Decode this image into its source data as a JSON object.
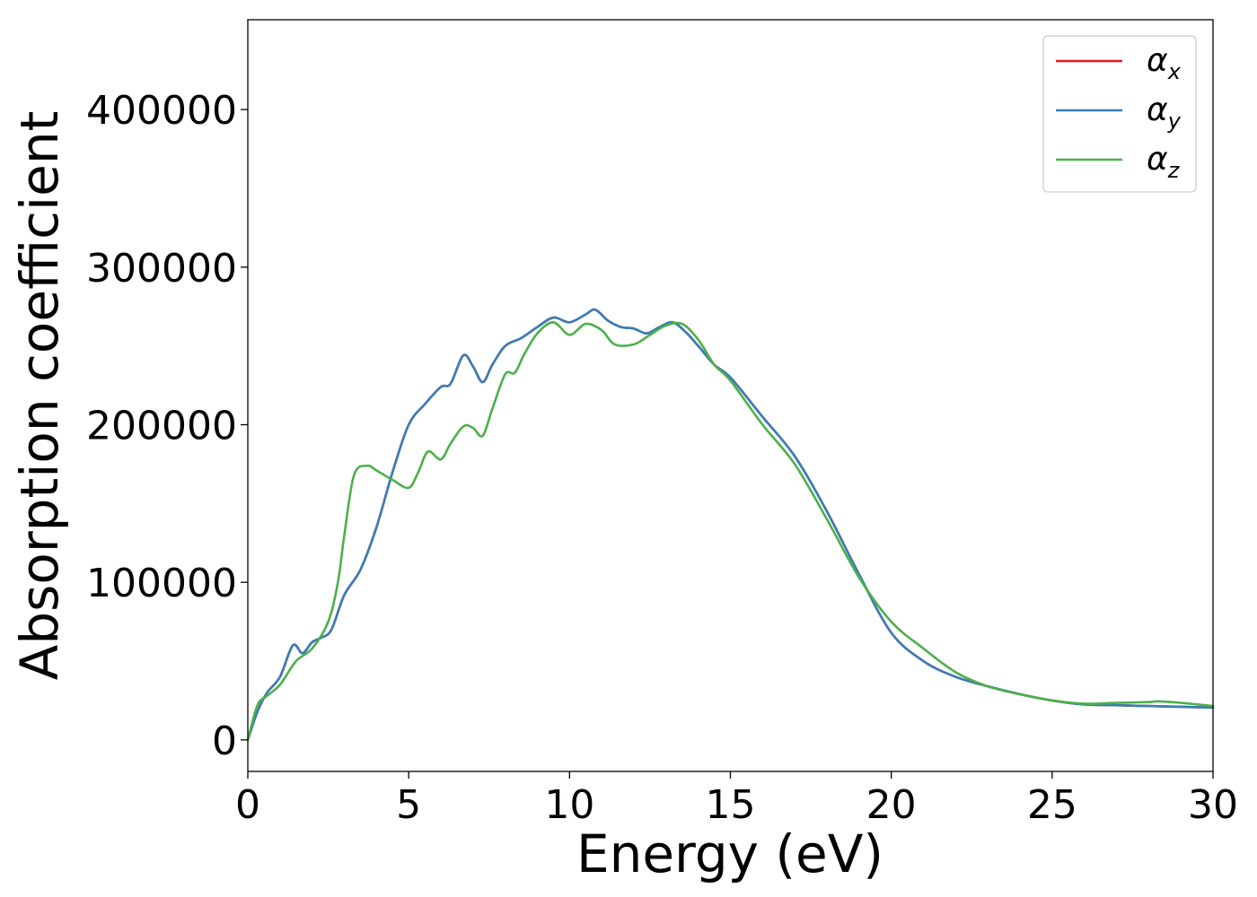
{
  "chart_data": {
    "type": "line",
    "title": "",
    "xlabel": "Energy (eV)",
    "ylabel": "Absorption coefficient",
    "xlim": [
      0,
      30
    ],
    "ylim": [
      -20000,
      457000
    ],
    "xticks": [
      0,
      5,
      10,
      15,
      20,
      25,
      30
    ],
    "xtick_labels": [
      "0",
      "5",
      "10",
      "15",
      "20",
      "25",
      "30"
    ],
    "yticks": [
      0,
      100000,
      200000,
      300000,
      400000
    ],
    "ytick_labels": [
      "0",
      "100000",
      "200000",
      "300000",
      "400000"
    ],
    "grid": false,
    "legend_position": "top-right",
    "legend": [
      {
        "symbol": "α",
        "sub": "x"
      },
      {
        "symbol": "α",
        "sub": "y"
      },
      {
        "symbol": "α",
        "sub": "z"
      }
    ],
    "series": [
      {
        "name": "αx",
        "color": "#e41a1c",
        "x": [
          0,
          0.3,
          0.6,
          1.0,
          1.4,
          1.7,
          2.0,
          2.3,
          2.6,
          3.0,
          3.5,
          4.0,
          4.5,
          5.0,
          5.5,
          6.0,
          6.3,
          6.7,
          7.0,
          7.3,
          7.6,
          8.0,
          8.5,
          9.0,
          9.5,
          10.0,
          10.5,
          10.8,
          11.2,
          11.6,
          12.0,
          12.4,
          12.8,
          13.2,
          13.6,
          14.0,
          14.5,
          15.0,
          16.0,
          17.0,
          18.0,
          19.0,
          20.0,
          21.0,
          22.0,
          23.0,
          24.0,
          25.0,
          26.0,
          27.0,
          28.0,
          29.0,
          30.0
        ],
        "y": [
          0,
          18000,
          30000,
          40000,
          60000,
          55000,
          62000,
          65000,
          70000,
          92000,
          108000,
          135000,
          170000,
          200000,
          213000,
          224000,
          226000,
          244000,
          237000,
          227000,
          238000,
          250000,
          255000,
          262000,
          268000,
          265000,
          270000,
          273000,
          266000,
          262000,
          261000,
          258000,
          262000,
          265000,
          259000,
          250000,
          238000,
          230000,
          205000,
          180000,
          145000,
          105000,
          68000,
          50000,
          40000,
          34000,
          29000,
          25000,
          22500,
          22000,
          21500,
          21000,
          20500
        ]
      },
      {
        "name": "αy",
        "color": "#377eb8",
        "x": [
          0,
          0.3,
          0.6,
          1.0,
          1.4,
          1.7,
          2.0,
          2.3,
          2.6,
          3.0,
          3.5,
          4.0,
          4.5,
          5.0,
          5.5,
          6.0,
          6.3,
          6.7,
          7.0,
          7.3,
          7.6,
          8.0,
          8.5,
          9.0,
          9.5,
          10.0,
          10.5,
          10.8,
          11.2,
          11.6,
          12.0,
          12.4,
          12.8,
          13.2,
          13.6,
          14.0,
          14.5,
          15.0,
          16.0,
          17.0,
          18.0,
          19.0,
          20.0,
          21.0,
          22.0,
          23.0,
          24.0,
          25.0,
          26.0,
          27.0,
          28.0,
          29.0,
          30.0
        ],
        "y": [
          0,
          18000,
          30000,
          40000,
          60000,
          55000,
          62000,
          65000,
          70000,
          92000,
          108000,
          135000,
          170000,
          200000,
          213000,
          224000,
          226000,
          244000,
          237000,
          227000,
          238000,
          250000,
          255000,
          262000,
          268000,
          265000,
          270000,
          273000,
          266000,
          262000,
          261000,
          258000,
          262000,
          265000,
          259000,
          250000,
          238000,
          230000,
          205000,
          180000,
          145000,
          105000,
          68000,
          50000,
          40000,
          34000,
          29000,
          25000,
          22500,
          22000,
          21500,
          21000,
          20500
        ]
      },
      {
        "name": "αz",
        "color": "#4daf4a",
        "x": [
          0,
          0.3,
          0.6,
          1.0,
          1.5,
          2.0,
          2.5,
          2.8,
          3.0,
          3.3,
          3.7,
          4.0,
          4.5,
          5.0,
          5.3,
          5.6,
          6.0,
          6.3,
          6.7,
          7.0,
          7.3,
          7.6,
          8.0,
          8.3,
          8.6,
          9.0,
          9.5,
          10.0,
          10.5,
          11.0,
          11.4,
          12.0,
          12.5,
          13.0,
          13.5,
          14.0,
          14.5,
          15.0,
          16.0,
          17.0,
          18.0,
          19.0,
          20.0,
          21.0,
          22.0,
          23.0,
          24.0,
          25.0,
          26.0,
          27.0,
          28.0,
          28.3,
          29.0,
          30.0
        ],
        "y": [
          0,
          22000,
          28000,
          35000,
          50000,
          58000,
          75000,
          100000,
          130000,
          168000,
          174000,
          171000,
          165000,
          160000,
          170000,
          183000,
          178000,
          188000,
          199000,
          198000,
          193000,
          210000,
          232000,
          233000,
          245000,
          258000,
          265000,
          257000,
          264000,
          260000,
          251000,
          251000,
          257000,
          263000,
          264000,
          254000,
          238000,
          228000,
          200000,
          175000,
          140000,
          103000,
          75000,
          58000,
          43000,
          34000,
          29000,
          25000,
          23000,
          23500,
          24000,
          24500,
          23500,
          21500
        ]
      }
    ]
  }
}
